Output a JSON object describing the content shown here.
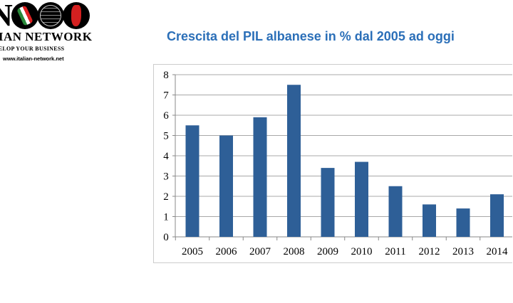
{
  "logo": {
    "name": "ITALIAN NETWORK",
    "visible_name": "LIAN NETWORK",
    "tagline": "DEVELOP YOUR BUSINESS",
    "visible_tagline": "EVELOP YOUR BUSINESS",
    "url": "www.italian-network.net"
  },
  "chart_data": {
    "type": "bar",
    "title": "Crescita del PIL albanese in % dal 2005 ad oggi",
    "categories": [
      "2005",
      "2006",
      "2007",
      "2008",
      "2009",
      "2010",
      "2011",
      "2012",
      "2013",
      "2014"
    ],
    "values": [
      5.5,
      5.0,
      5.9,
      7.5,
      3.4,
      3.7,
      2.5,
      1.6,
      1.4,
      2.1
    ],
    "yticks": [
      "0",
      "1",
      "2",
      "3",
      "4",
      "5",
      "6",
      "7",
      "8"
    ],
    "ylim": [
      0,
      8
    ],
    "xlabel": "",
    "ylabel": "",
    "grid": true,
    "bar_color": "#2e5f97",
    "title_color": "#2b6fb8"
  }
}
